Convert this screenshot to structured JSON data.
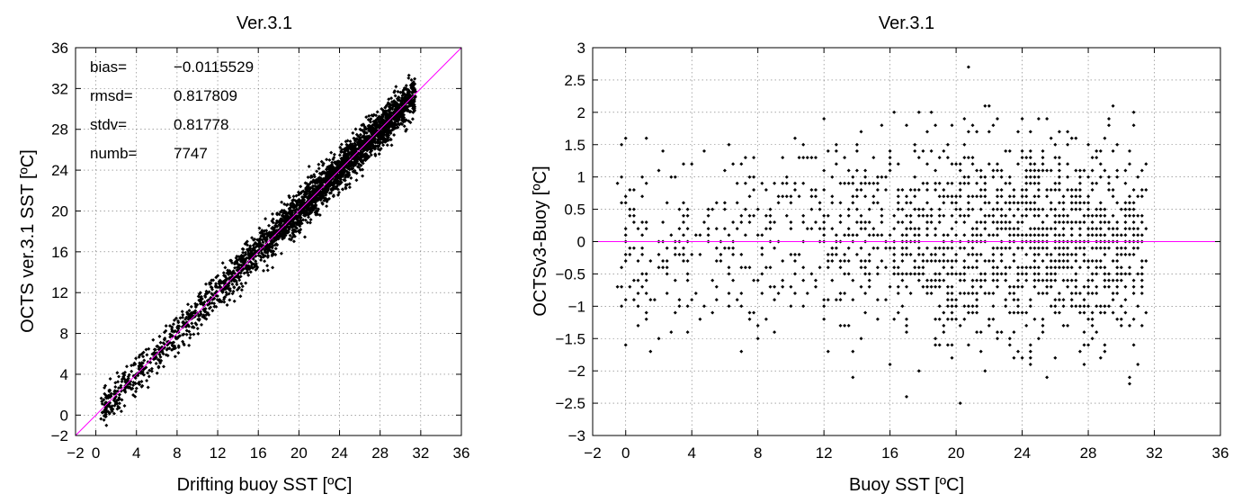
{
  "chart_data": [
    {
      "type": "scatter",
      "title": "Ver.3.1",
      "xlabel": "Drifting buoy SST [ºC]",
      "ylabel": "OCTS ver.3.1 SST [ºC]",
      "xlim": [
        -2,
        36
      ],
      "ylim": [
        -2,
        36
      ],
      "xticks": [
        -2,
        0,
        4,
        8,
        12,
        16,
        20,
        24,
        28,
        32,
        36
      ],
      "yticks": [
        -2,
        0,
        4,
        8,
        12,
        16,
        20,
        24,
        28,
        32,
        36
      ],
      "grid": true,
      "reference_line": {
        "type": "identity",
        "color": "#ff00ff"
      },
      "marker_color": "#000000",
      "stats": [
        {
          "label": "bias=",
          "value": "−0.0115529"
        },
        {
          "label": "rmsd=",
          "value": "0.817809"
        },
        {
          "label": "stdv=",
          "value": "0.81778"
        },
        {
          "label": "numb=",
          "value": "7747"
        }
      ],
      "point_cloud": {
        "n_points": 7747,
        "x_range": [
          0.5,
          31.5
        ],
        "relation": "y = x + e",
        "bias": -0.0115529,
        "stdv": 0.81778,
        "density_peak_x": 25
      }
    },
    {
      "type": "scatter",
      "title": "Ver.3.1",
      "xlabel": "Buoy SST [ºC]",
      "ylabel": "OCTSv3-Buoy [ºC]",
      "xlim": [
        -2,
        36
      ],
      "ylim": [
        -3,
        3
      ],
      "xticks": [
        -2,
        0,
        4,
        8,
        12,
        16,
        20,
        24,
        28,
        32,
        36
      ],
      "yticks": [
        -3,
        -2.5,
        -2,
        -1.5,
        -1,
        -0.5,
        0,
        0.5,
        1,
        1.5,
        2,
        2.5,
        3
      ],
      "ytick_labels": [
        "−3",
        "−2.5",
        "−2",
        "−1.5",
        "−1",
        "−0.5",
        "0",
        "0.5",
        "1",
        "1.5",
        "2",
        "2.5",
        "3"
      ],
      "xtick_labels": [
        "−2",
        "0",
        "4",
        "8",
        "12",
        "16",
        "20",
        "24",
        "28",
        "32",
        "36"
      ],
      "grid": true,
      "reference_line": {
        "type": "zero",
        "color": "#ff00ff"
      },
      "marker_color": "#000000",
      "point_cloud": {
        "n_points": 7747,
        "x_range": [
          -0.5,
          31.5
        ],
        "y_quantization": 0.1,
        "bias": -0.0115529,
        "stdv": 0.81778,
        "density_peak_x": 25
      }
    }
  ],
  "left_tick_labels": [
    "−2",
    "0",
    "4",
    "8",
    "12",
    "16",
    "20",
    "24",
    "28",
    "32",
    "36"
  ]
}
